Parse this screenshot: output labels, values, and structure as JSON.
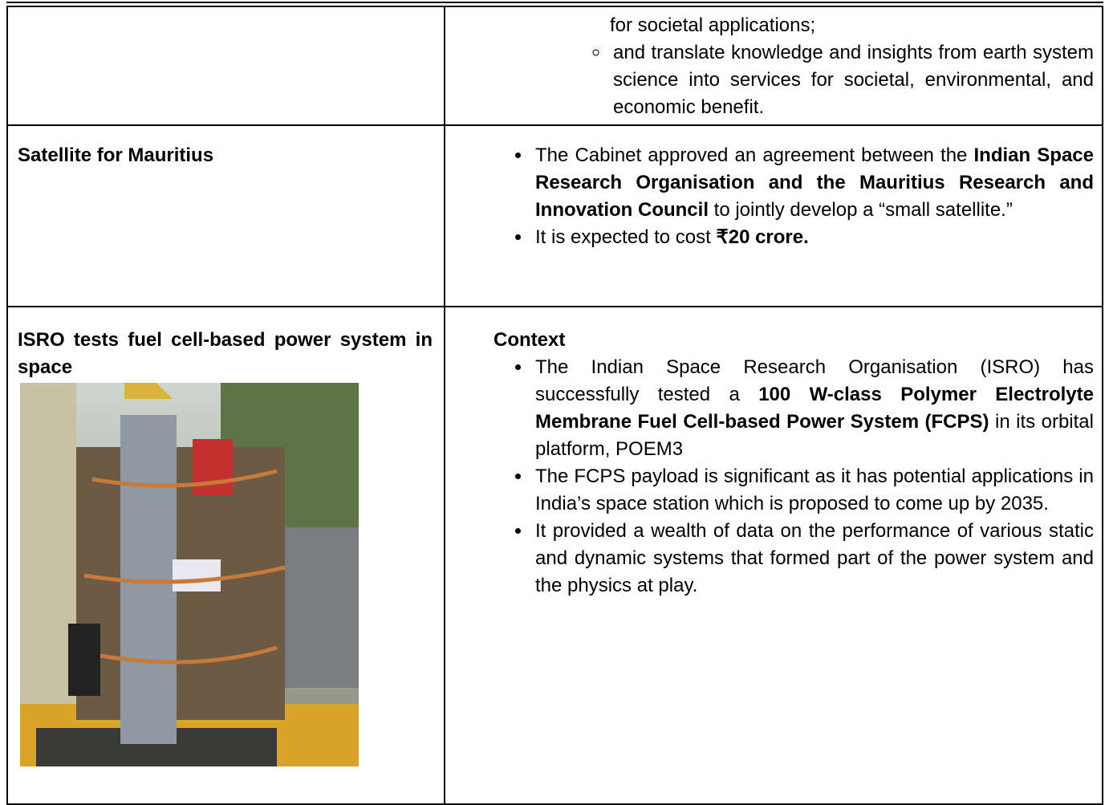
{
  "table": {
    "rows": [
      {
        "left": {},
        "right": {
          "continued_text": "for societal applications;",
          "sub_bullets": [
            {
              "runs": [
                {
                  "text": "and translate knowledge and insights from earth system science into services for societal, environmental, and economic benefit.",
                  "bold": false
                }
              ]
            }
          ]
        }
      },
      {
        "left": {
          "title": "Satellite for Mauritius"
        },
        "right": {
          "bullets": [
            {
              "runs": [
                {
                  "text": "The Cabinet approved an agreement between the ",
                  "bold": false
                },
                {
                  "text": "Indian Space Research Organisation and the Mauritius Research and Innovation Council",
                  "bold": true
                },
                {
                  "text": " to jointly develop a “small satellite.”",
                  "bold": false
                }
              ]
            },
            {
              "runs": [
                {
                  "text": "It is expected to cost ",
                  "bold": false
                },
                {
                  "text": "₹20 crore.",
                  "bold": true
                }
              ]
            }
          ]
        }
      },
      {
        "left": {
          "title": "ISRO tests fuel cell-based power system in space",
          "image": true
        },
        "right": {
          "heading": "Context",
          "bullets": [
            {
              "runs": [
                {
                  "text": "The Indian Space Research Organisation (ISRO) has successfully tested a ",
                  "bold": false
                },
                {
                  "text": "100 W-class Polymer Electrolyte Membrane Fuel Cell-based Power System (FCPS)",
                  "bold": true
                },
                {
                  "text": " in its orbital platform, POEM3",
                  "bold": false
                }
              ]
            },
            {
              "runs": [
                {
                  "text": "The FCPS payload is significant as it has potential applications in India’s space station which is proposed to come up by 2035.",
                  "bold": false
                }
              ]
            },
            {
              "runs": [
                {
                  "text": "It provided a wealth of data on the performance of various static and dynamic systems that formed part of the power system and the physics at play.",
                  "bold": false
                }
              ]
            }
          ]
        }
      }
    ]
  }
}
